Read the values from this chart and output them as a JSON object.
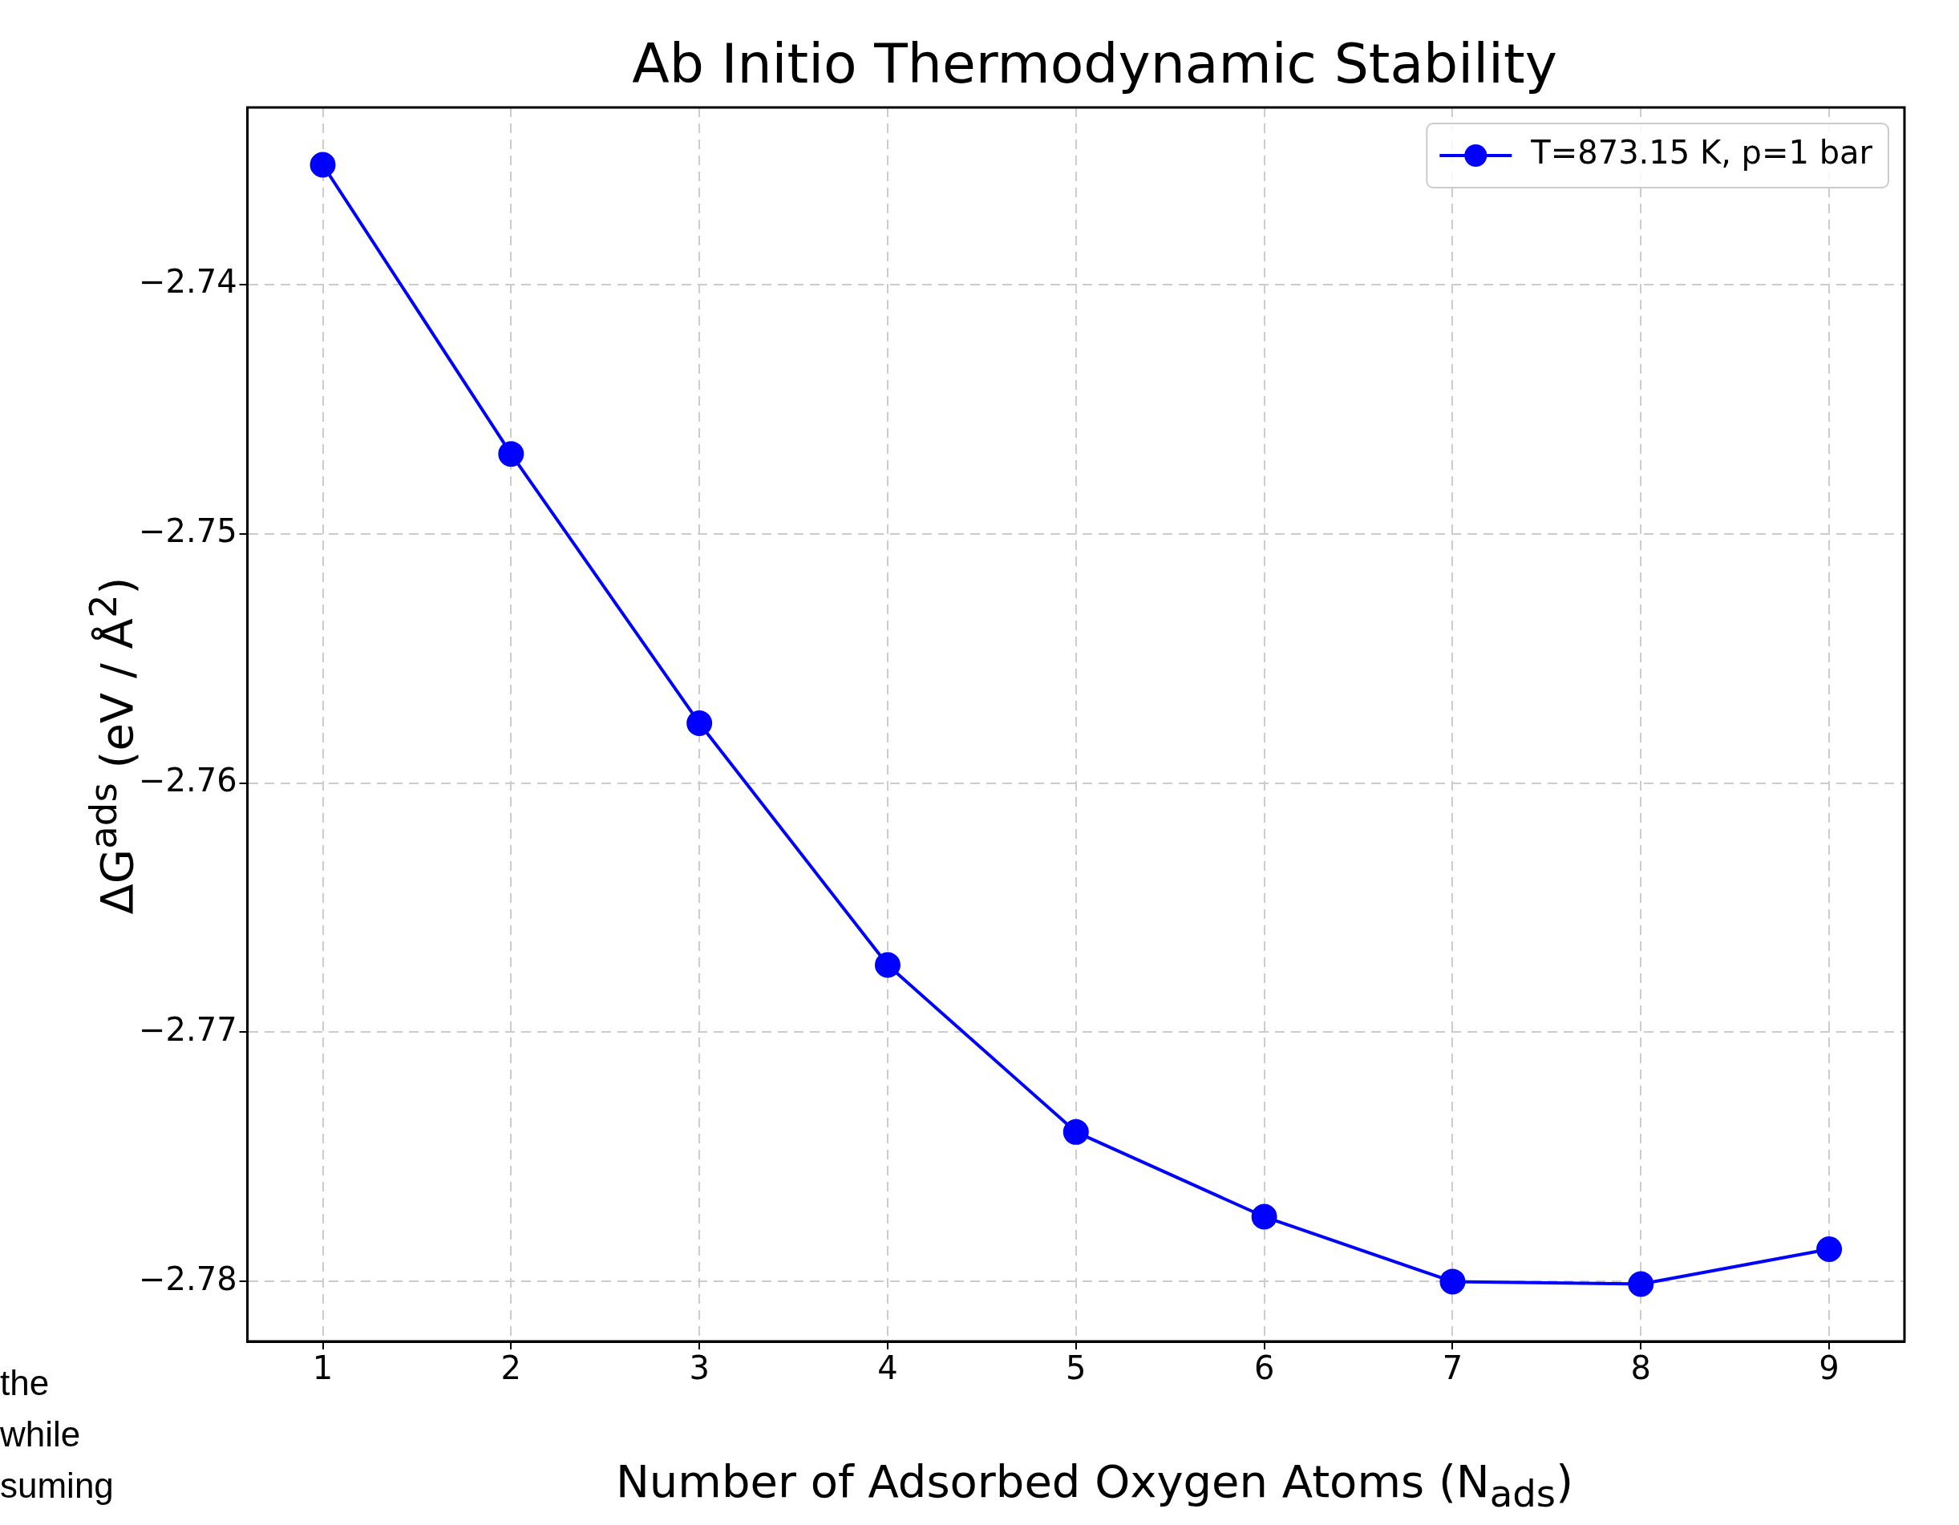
{
  "chart_data": {
    "type": "line",
    "title": "Ab Initio Thermodynamic Stability",
    "xlabel": "Number of Adsorbed Oxygen Atoms (N$_{ads}$)",
    "ylabel": "ΔG$^{ads}$ (eV / Å$^{2}$)",
    "x": [
      1,
      2,
      3,
      4,
      5,
      6,
      7,
      8,
      9
    ],
    "series": [
      {
        "name": "T=873.15 K, p=1 bar",
        "color": "#0000ff",
        "values": [
          -2.7352,
          -2.7468,
          -2.7576,
          -2.7673,
          -2.774,
          -2.7774,
          -2.78,
          -2.7801,
          -2.7787
        ]
      }
    ],
    "xlim": [
      0.6,
      9.4
    ],
    "xticks": [
      1,
      2,
      3,
      4,
      5,
      6,
      7,
      8,
      9
    ],
    "ylim": [
      -2.7824,
      -2.7329
    ],
    "yticks": [
      -2.74,
      -2.75,
      -2.76,
      -2.77,
      -2.78
    ],
    "grid": true,
    "legend": "top right",
    "marker": "circle",
    "line_style": "solid",
    "annotations": [
      "the",
      "while",
      "suming"
    ]
  }
}
